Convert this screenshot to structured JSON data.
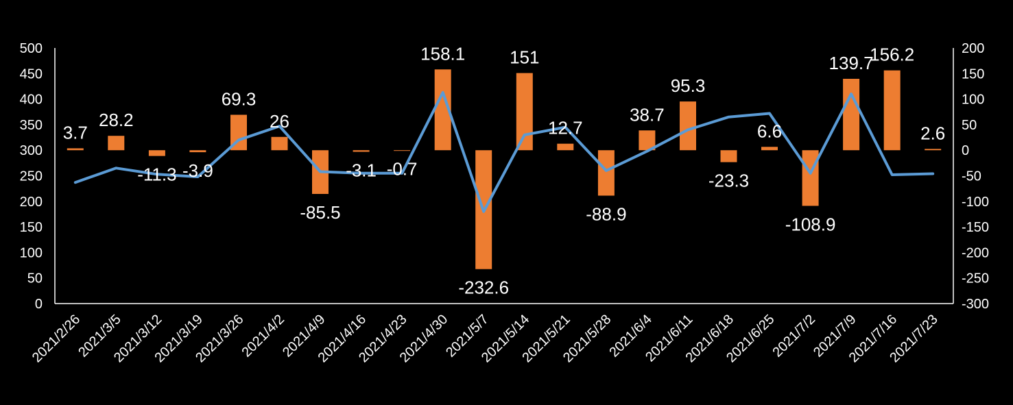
{
  "chart_data": {
    "type": "bar+line",
    "categories": [
      "2021/2/26",
      "2021/3/5",
      "2021/3/12",
      "2021/3/19",
      "2021/3/26",
      "2021/4/2",
      "2021/4/9",
      "2021/4/16",
      "2021/4/23",
      "2021/4/30",
      "2021/5/7",
      "2021/5/14",
      "2021/5/21",
      "2021/5/28",
      "2021/6/4",
      "2021/6/11",
      "2021/6/18",
      "2021/6/25",
      "2021/7/2",
      "2021/7/9",
      "2021/7/16",
      "2021/7/23"
    ],
    "series": [
      {
        "type": "bar",
        "axis": "right",
        "color": "#ED7D31",
        "values": [
          3.7,
          28.2,
          -11.3,
          -3.9,
          69.3,
          26,
          -85.5,
          -3.1,
          -0.7,
          158.1,
          -232.6,
          151,
          12.7,
          -88.9,
          38.7,
          95.3,
          -23.3,
          6.6,
          -108.9,
          139.7,
          156.2,
          2.6
        ],
        "labels": [
          "3.7",
          "28.2",
          "-11.3",
          "-3.9",
          "69.3",
          "26",
          "-85.5",
          "-3.1",
          "-0.7",
          "158.1",
          "-232.6",
          "151",
          "12.7",
          "-88.9",
          "38.7",
          "95.3",
          "-23.3",
          "6.6",
          "-108.9",
          "139.7",
          "156.2",
          "2.6"
        ]
      },
      {
        "type": "line",
        "axis": "left",
        "color": "#5B9BD5",
        "values": [
          237,
          265,
          253,
          248,
          320,
          347,
          258,
          255,
          255,
          413,
          180,
          330,
          345,
          260,
          298,
          340,
          365,
          372,
          255,
          410,
          252,
          254
        ]
      }
    ],
    "left_axis": {
      "min": 0,
      "max": 500,
      "ticks": [
        "0",
        "50",
        "100",
        "150",
        "200",
        "250",
        "300",
        "350",
        "400",
        "450",
        "500"
      ]
    },
    "right_axis": {
      "min": -300,
      "max": 200,
      "ticks": [
        "-300",
        "-250",
        "-200",
        "-150",
        "-100",
        "-50",
        "0",
        "50",
        "100",
        "150",
        "200"
      ]
    },
    "grid": false,
    "legend": "none",
    "background": "#000000"
  }
}
